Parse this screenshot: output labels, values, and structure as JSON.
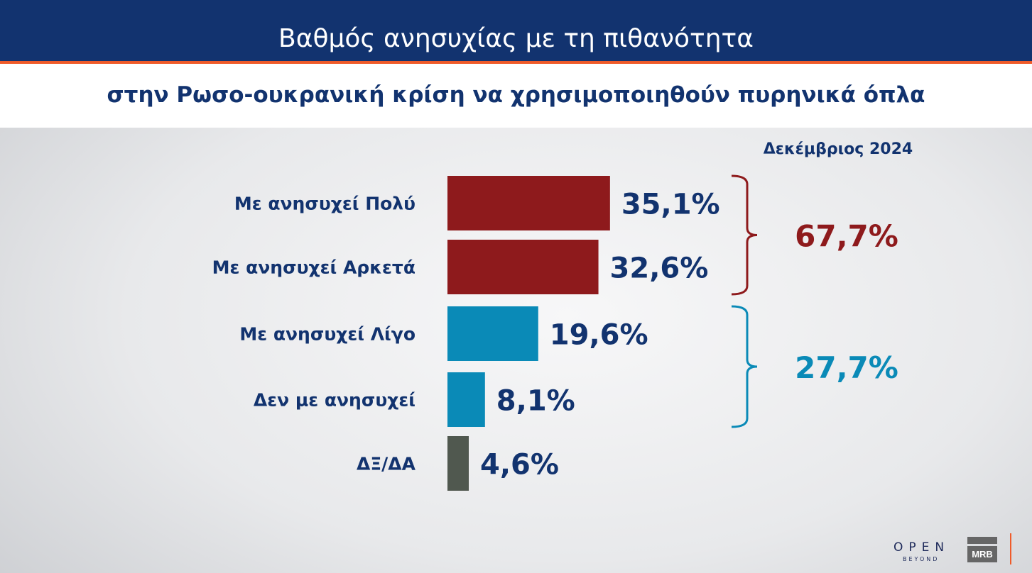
{
  "header": {
    "title": "Βαθμός ανησυχίας με τη πιθανότητα",
    "subtitle": "στην Ρωσο-ουκρανική κρίση να χρησιμοποιηθούν πυρηνικά όπλα"
  },
  "chart_data": {
    "type": "bar",
    "orientation": "horizontal",
    "period_label": "Δεκέμβριος 2024",
    "categories": [
      "Με ανησυχεί Πολύ",
      "Με ανησυχεί Αρκετά",
      "Με ανησυχεί Λίγο",
      "Δεν με ανησυχεί",
      "ΔΞ/ΔΑ"
    ],
    "values": [
      35.1,
      32.6,
      19.6,
      8.1,
      4.6
    ],
    "data_labels": [
      "35,1%",
      "32,6%",
      "19,6%",
      "8,1%",
      "4,6%"
    ],
    "colors": [
      "#8e1a1c",
      "#8e1a1c",
      "#0a8ab7",
      "#0a8ab7",
      "#50584f"
    ],
    "groups": [
      {
        "label": "67,7%",
        "value": 67.7,
        "members": [
          0,
          1
        ],
        "color": "#8e1a1c"
      },
      {
        "label": "27,7%",
        "value": 27.7,
        "members": [
          2,
          3
        ],
        "color": "#0a8ab7"
      }
    ]
  },
  "logos": {
    "open": "OPEN",
    "beyond": "BEYOND",
    "mrb": "MRB"
  }
}
